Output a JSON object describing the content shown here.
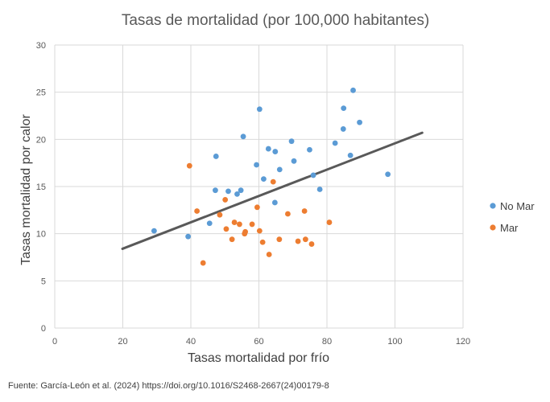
{
  "chart_data": {
    "type": "scatter",
    "title": "Tasas de mortalidad (por 100,000 habitantes)",
    "xlabel": "Tasas mortalidad por frío",
    "ylabel": "Tasas mortalidad por calor",
    "xlim": [
      0,
      120
    ],
    "ylim": [
      0,
      30
    ],
    "xticks": [
      "0",
      "20",
      "40",
      "60",
      "80",
      "100",
      "120"
    ],
    "yticks": [
      "0",
      "5",
      "10",
      "15",
      "20",
      "25",
      "30"
    ],
    "grid": true,
    "legend_position": "right",
    "series": [
      {
        "name": "No Mar",
        "color": "#5B9BD5",
        "points": [
          [
            29.2,
            10.3
          ],
          [
            39.2,
            9.7
          ],
          [
            45.5,
            11.1
          ],
          [
            47.2,
            14.6
          ],
          [
            47.4,
            18.2
          ],
          [
            51.0,
            14.5
          ],
          [
            53.6,
            14.2
          ],
          [
            54.7,
            14.6
          ],
          [
            55.4,
            20.3
          ],
          [
            59.3,
            17.3
          ],
          [
            60.2,
            23.2
          ],
          [
            61.4,
            15.8
          ],
          [
            62.8,
            19.0
          ],
          [
            64.7,
            13.3
          ],
          [
            64.8,
            18.7
          ],
          [
            66.1,
            16.8
          ],
          [
            69.6,
            19.8
          ],
          [
            70.3,
            17.7
          ],
          [
            74.9,
            18.9
          ],
          [
            76.0,
            16.2
          ],
          [
            77.9,
            14.7
          ],
          [
            82.4,
            19.6
          ],
          [
            84.8,
            21.1
          ],
          [
            84.9,
            23.3
          ],
          [
            86.9,
            18.3
          ],
          [
            87.7,
            25.2
          ],
          [
            89.6,
            21.8
          ],
          [
            97.9,
            16.3
          ]
        ]
      },
      {
        "name": "Mar",
        "color": "#ED7D31",
        "points": [
          [
            39.6,
            17.2
          ],
          [
            41.8,
            12.4
          ],
          [
            43.6,
            6.9
          ],
          [
            48.5,
            12.0
          ],
          [
            50.1,
            13.6
          ],
          [
            50.4,
            10.5
          ],
          [
            52.1,
            9.4
          ],
          [
            52.8,
            11.2
          ],
          [
            54.3,
            11.0
          ],
          [
            55.8,
            10.0
          ],
          [
            56.0,
            10.2
          ],
          [
            58.0,
            11.0
          ],
          [
            59.5,
            12.8
          ],
          [
            60.2,
            10.3
          ],
          [
            61.1,
            9.1
          ],
          [
            63.0,
            7.8
          ],
          [
            64.2,
            15.5
          ],
          [
            66.0,
            9.4
          ],
          [
            68.5,
            12.1
          ],
          [
            71.5,
            9.2
          ],
          [
            73.4,
            12.4
          ],
          [
            73.7,
            9.4
          ],
          [
            75.5,
            8.9
          ],
          [
            80.7,
            11.2
          ]
        ]
      }
    ],
    "trendline": {
      "color": "#595959",
      "x": [
        19.9,
        108
      ],
      "y": [
        8.4,
        20.7
      ]
    }
  },
  "source": "Fuente: García-León et al. (2024) https://doi.org/10.1016/S2468-2667(24)00179-8"
}
